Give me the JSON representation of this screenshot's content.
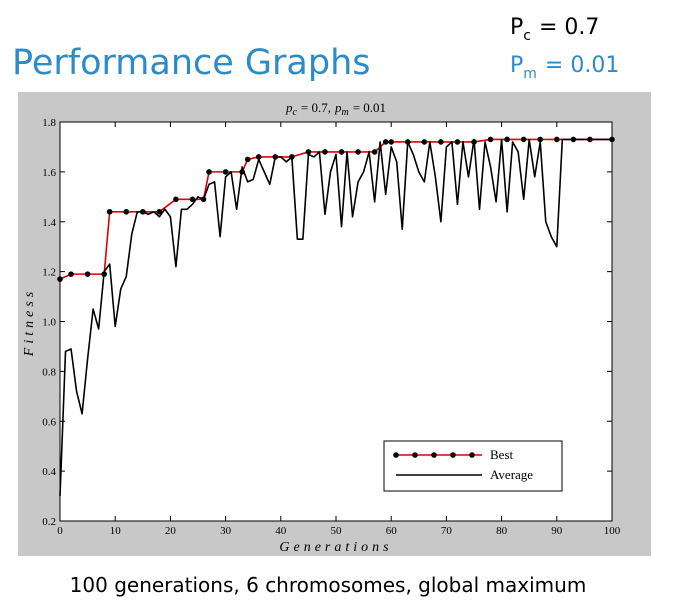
{
  "slide": {
    "title": "Performance Graphs",
    "parameters": [
      {
        "symbol": "P",
        "subscript": "c",
        "text": "= 0.7",
        "color": "#000000"
      },
      {
        "symbol": "P",
        "subscript": "m",
        "text": "= 0.01",
        "color": "#2e8bc9"
      }
    ],
    "caption": "100 generations, 6 chromosomes, global maximum"
  },
  "chart_data": {
    "type": "line",
    "title": [
      {
        "text": "p",
        "italic": true
      },
      {
        "text": "c",
        "sub": true,
        "italic": true
      },
      {
        "text": "= 0.7,"
      },
      {
        "text": "p",
        "italic": true
      },
      {
        "text": "m",
        "sub": true,
        "italic": true
      },
      {
        "text": "= 0.01"
      }
    ],
    "x_label": "Generations",
    "y_label": "Fitness",
    "xlim": [
      0,
      100
    ],
    "ylim": [
      0.2,
      1.8
    ],
    "xticks": [
      0,
      10,
      20,
      30,
      40,
      50,
      60,
      70,
      80,
      90,
      100
    ],
    "yticks": [
      0.2,
      0.4,
      0.6,
      0.8,
      {
        "value": 1,
        "label": "1.0"
      },
      1.2,
      1.4,
      1.6,
      1.8
    ],
    "legend": "lower right",
    "series": [
      {
        "name": "Best",
        "color": "#e00000",
        "markers": true,
        "x": [
          0,
          2,
          5,
          8,
          9,
          12,
          15,
          18,
          21,
          24,
          26,
          27,
          30,
          33,
          34,
          36,
          39,
          42,
          45,
          48,
          51,
          54,
          57,
          59,
          60,
          63,
          66,
          69,
          72,
          75,
          78,
          81,
          84,
          87,
          90,
          93,
          96,
          100
        ],
        "values": [
          1.17,
          1.19,
          1.19,
          1.19,
          1.44,
          1.44,
          1.44,
          1.44,
          1.49,
          1.49,
          1.49,
          1.6,
          1.6,
          1.6,
          1.65,
          1.66,
          1.66,
          1.66,
          1.68,
          1.68,
          1.68,
          1.68,
          1.68,
          1.72,
          1.72,
          1.72,
          1.72,
          1.72,
          1.72,
          1.72,
          1.73,
          1.73,
          1.73,
          1.73,
          1.73,
          1.73,
          1.73,
          1.73
        ]
      },
      {
        "name": "Average",
        "color": "#000000",
        "markers": false,
        "x": [
          0,
          1,
          2,
          3,
          4,
          5,
          6,
          7,
          8,
          9,
          10,
          11,
          12,
          13,
          14,
          15,
          16,
          17,
          18,
          19,
          20,
          21,
          22,
          23,
          24,
          25,
          26,
          27,
          28,
          29,
          30,
          31,
          32,
          33,
          34,
          35,
          36,
          37,
          38,
          39,
          40,
          41,
          42,
          43,
          44,
          45,
          46,
          47,
          48,
          49,
          50,
          51,
          52,
          53,
          54,
          55,
          56,
          57,
          58,
          59,
          60,
          61,
          62,
          63,
          64,
          65,
          66,
          67,
          68,
          69,
          70,
          71,
          72,
          73,
          74,
          75,
          76,
          77,
          78,
          79,
          80,
          81,
          82,
          83,
          84,
          85,
          86,
          87,
          88,
          89,
          90,
          91,
          92,
          93,
          94,
          95,
          96,
          97,
          98,
          99,
          100
        ],
        "values": [
          0.3,
          0.88,
          0.89,
          0.72,
          0.63,
          0.85,
          1.05,
          0.97,
          1.2,
          1.23,
          0.98,
          1.13,
          1.18,
          1.35,
          1.44,
          1.44,
          1.43,
          1.44,
          1.42,
          1.45,
          1.42,
          1.22,
          1.45,
          1.45,
          1.47,
          1.5,
          1.49,
          1.55,
          1.56,
          1.34,
          1.58,
          1.6,
          1.45,
          1.62,
          1.56,
          1.57,
          1.65,
          1.6,
          1.55,
          1.66,
          1.66,
          1.64,
          1.66,
          1.33,
          1.33,
          1.67,
          1.66,
          1.68,
          1.43,
          1.6,
          1.67,
          1.38,
          1.68,
          1.42,
          1.56,
          1.6,
          1.68,
          1.48,
          1.72,
          1.51,
          1.7,
          1.64,
          1.37,
          1.72,
          1.67,
          1.6,
          1.56,
          1.72,
          1.58,
          1.4,
          1.7,
          1.72,
          1.47,
          1.72,
          1.58,
          1.73,
          1.45,
          1.72,
          1.62,
          1.48,
          1.73,
          1.44,
          1.72,
          1.68,
          1.49,
          1.73,
          1.58,
          1.72,
          1.4,
          1.34,
          1.3,
          1.73,
          1.73,
          1.73,
          1.73,
          1.73,
          1.73,
          1.73,
          1.73,
          1.73,
          1.73
        ]
      }
    ]
  }
}
